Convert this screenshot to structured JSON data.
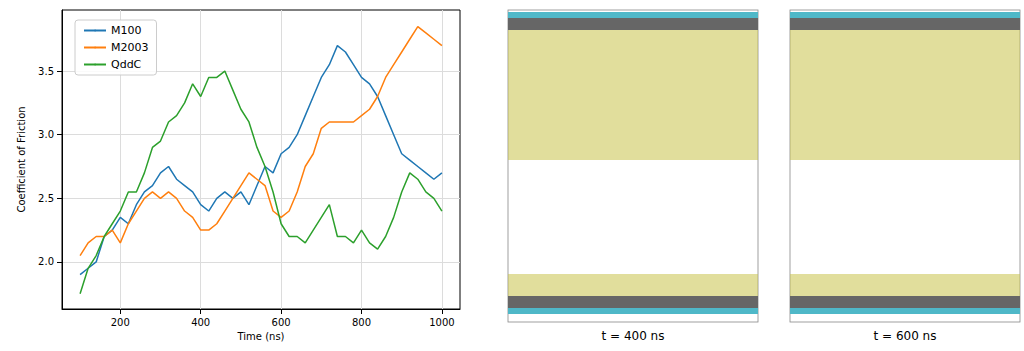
{
  "chart_data": {
    "type": "line",
    "x_label": "Time (ns)",
    "y_label": "Coefficient of Friction",
    "x": [
      100,
      120,
      140,
      160,
      180,
      200,
      220,
      240,
      260,
      280,
      300,
      320,
      340,
      360,
      380,
      400,
      420,
      440,
      460,
      480,
      500,
      520,
      540,
      560,
      580,
      600,
      620,
      640,
      660,
      680,
      700,
      720,
      740,
      760,
      780,
      800,
      820,
      840,
      860,
      880,
      900,
      920,
      940,
      960,
      980,
      1000
    ],
    "series": [
      {
        "name": "M100",
        "color": "#1f77b4",
        "values": [
          1.9,
          1.95,
          2.0,
          2.2,
          2.25,
          2.35,
          2.3,
          2.45,
          2.55,
          2.6,
          2.7,
          2.75,
          2.65,
          2.6,
          2.55,
          2.45,
          2.4,
          2.5,
          2.55,
          2.5,
          2.55,
          2.45,
          2.6,
          2.75,
          2.7,
          2.85,
          2.9,
          3.0,
          3.15,
          3.3,
          3.45,
          3.55,
          3.7,
          3.65,
          3.55,
          3.45,
          3.4,
          3.3,
          3.15,
          3.0,
          2.85,
          2.8,
          2.75,
          2.7,
          2.65,
          2.7
        ]
      },
      {
        "name": "M2003",
        "color": "#ff7f0e",
        "values": [
          2.05,
          2.15,
          2.2,
          2.2,
          2.25,
          2.15,
          2.3,
          2.4,
          2.5,
          2.55,
          2.5,
          2.55,
          2.5,
          2.4,
          2.35,
          2.25,
          2.25,
          2.3,
          2.4,
          2.5,
          2.6,
          2.7,
          2.65,
          2.6,
          2.4,
          2.35,
          2.4,
          2.55,
          2.75,
          2.85,
          3.05,
          3.1,
          3.1,
          3.1,
          3.1,
          3.15,
          3.2,
          3.3,
          3.45,
          3.55,
          3.65,
          3.75,
          3.85,
          3.8,
          3.75,
          3.7
        ]
      },
      {
        "name": "QddC",
        "color": "#2ca02c",
        "values": [
          1.75,
          1.95,
          2.05,
          2.2,
          2.3,
          2.4,
          2.55,
          2.55,
          2.7,
          2.9,
          2.95,
          3.1,
          3.15,
          3.25,
          3.4,
          3.3,
          3.45,
          3.45,
          3.5,
          3.35,
          3.2,
          3.1,
          2.9,
          2.75,
          2.55,
          2.3,
          2.2,
          2.2,
          2.15,
          2.25,
          2.35,
          2.45,
          2.2,
          2.2,
          2.15,
          2.25,
          2.15,
          2.1,
          2.2,
          2.35,
          2.55,
          2.7,
          2.65,
          2.55,
          2.5,
          2.4
        ]
      }
    ],
    "xlim": [
      55,
      1045
    ],
    "xticks": [
      200,
      400,
      600,
      800,
      1000
    ],
    "ylim": [
      1.63,
      3.98
    ],
    "yticks": [
      {
        "value": 2,
        "label": "2.0"
      },
      {
        "value": 2.5,
        "label": "2.5"
      },
      {
        "value": 3,
        "label": "3.0"
      },
      {
        "value": 3.5,
        "label": "3.5"
      }
    ],
    "grid": true,
    "legend": "upper left"
  },
  "panels": [
    {
      "caption": "t = 400 ns"
    },
    {
      "caption": "t = 600 ns"
    }
  ]
}
